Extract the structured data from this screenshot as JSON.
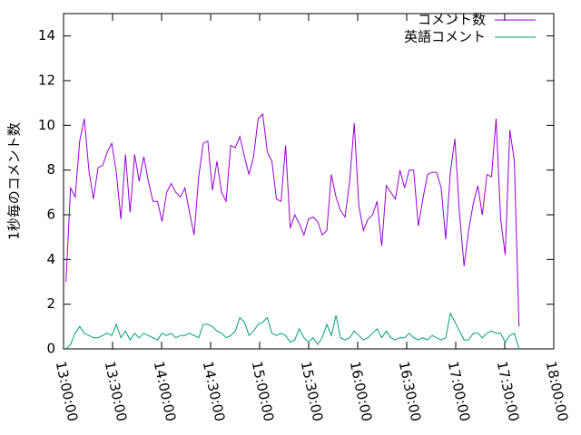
{
  "chart_data": {
    "type": "line",
    "ylabel": "1秒毎のコメント数",
    "x": [
      "13:01:30",
      "13:04:18",
      "13:07:06",
      "13:09:54",
      "13:12:42",
      "13:15:30",
      "13:18:18",
      "13:21:06",
      "13:23:54",
      "13:26:42",
      "13:29:30",
      "13:32:18",
      "13:35:06",
      "13:37:54",
      "13:40:42",
      "13:43:30",
      "13:46:18",
      "13:49:06",
      "13:51:54",
      "13:54:42",
      "13:57:30",
      "14:00:18",
      "14:03:06",
      "14:05:54",
      "14:08:42",
      "14:11:30",
      "14:14:18",
      "14:17:06",
      "14:19:54",
      "14:22:42",
      "14:25:30",
      "14:28:18",
      "14:31:06",
      "14:33:54",
      "14:36:42",
      "14:39:30",
      "14:42:18",
      "14:45:06",
      "14:47:54",
      "14:50:42",
      "14:53:30",
      "14:56:18",
      "14:59:06",
      "15:01:54",
      "15:04:42",
      "15:07:30",
      "15:10:18",
      "15:13:06",
      "15:15:54",
      "15:18:42",
      "15:21:30",
      "15:24:18",
      "15:27:06",
      "15:29:54",
      "15:32:42",
      "15:35:30",
      "15:38:18",
      "15:41:06",
      "15:43:54",
      "15:46:42",
      "15:49:30",
      "15:52:18",
      "15:55:06",
      "15:57:54",
      "16:00:42",
      "16:03:30",
      "16:06:18",
      "16:09:06",
      "16:11:54",
      "16:14:42",
      "16:17:30",
      "16:20:18",
      "16:23:06",
      "16:25:54",
      "16:28:42",
      "16:31:30",
      "16:34:18",
      "16:37:06",
      "16:39:54",
      "16:42:42",
      "16:45:30",
      "16:48:18",
      "16:51:06",
      "16:53:54",
      "16:56:42",
      "16:59:30",
      "17:02:18",
      "17:05:06",
      "17:07:54",
      "17:10:42",
      "17:13:30",
      "17:16:18",
      "17:19:06",
      "17:21:54",
      "17:24:42",
      "17:27:30",
      "17:30:18",
      "17:33:06",
      "17:35:54",
      "17:38:42"
    ],
    "series": [
      {
        "name": "コメント数",
        "color": "#9400d3",
        "values": [
          3.0,
          7.2,
          6.8,
          9.3,
          10.3,
          8.0,
          6.7,
          8.1,
          8.2,
          8.8,
          9.2,
          7.9,
          5.8,
          8.7,
          6.1,
          8.7,
          7.5,
          8.6,
          7.5,
          6.6,
          6.6,
          5.7,
          7.0,
          7.4,
          7.0,
          6.8,
          7.2,
          6.1,
          5.1,
          7.7,
          9.2,
          9.3,
          7.1,
          8.4,
          7.0,
          6.6,
          9.1,
          9.0,
          9.5,
          8.6,
          7.8,
          8.6,
          10.3,
          10.5,
          8.8,
          8.4,
          6.7,
          6.6,
          9.1,
          5.4,
          6.0,
          5.6,
          5.1,
          5.8,
          5.9,
          5.7,
          5.1,
          5.3,
          7.8,
          6.8,
          6.2,
          5.9,
          7.5,
          10.1,
          6.4,
          5.3,
          5.8,
          6.0,
          6.6,
          4.6,
          7.3,
          7.0,
          6.7,
          8.0,
          7.2,
          8.0,
          8.0,
          5.5,
          6.7,
          7.8,
          7.9,
          7.9,
          7.2,
          4.9,
          7.9,
          9.4,
          6.1,
          3.7,
          5.3,
          6.5,
          7.3,
          6.0,
          7.8,
          7.7,
          10.3,
          5.8,
          4.2,
          9.8,
          8.4,
          1.0
        ]
      },
      {
        "name": "英語コメント",
        "color": "#009e73",
        "values": [
          0.0,
          0.2,
          0.7,
          1.0,
          0.7,
          0.6,
          0.5,
          0.5,
          0.6,
          0.7,
          0.6,
          1.1,
          0.5,
          0.8,
          0.4,
          0.7,
          0.5,
          0.7,
          0.6,
          0.5,
          0.4,
          0.7,
          0.6,
          0.7,
          0.5,
          0.6,
          0.6,
          0.7,
          0.6,
          0.5,
          1.1,
          1.1,
          1.0,
          0.8,
          0.7,
          0.5,
          0.6,
          0.8,
          1.4,
          1.2,
          0.6,
          0.8,
          1.1,
          1.2,
          1.4,
          0.7,
          0.6,
          0.7,
          0.6,
          0.3,
          0.4,
          0.9,
          0.5,
          0.3,
          0.5,
          0.2,
          0.5,
          1.1,
          0.6,
          1.5,
          0.5,
          0.4,
          0.5,
          0.8,
          0.6,
          0.4,
          0.5,
          0.7,
          0.9,
          0.5,
          0.8,
          0.5,
          0.4,
          0.5,
          0.5,
          0.7,
          0.5,
          0.4,
          0.5,
          0.4,
          0.6,
          0.5,
          0.4,
          0.5,
          1.6,
          1.2,
          0.8,
          0.4,
          0.4,
          0.7,
          0.7,
          0.5,
          0.7,
          0.8,
          0.7,
          0.7,
          0.3,
          0.6,
          0.7,
          0.0
        ]
      }
    ],
    "xlim": [
      "13:00:00",
      "18:00:00"
    ],
    "xticks": [
      "13:00:00",
      "13:30:00",
      "14:00:00",
      "14:30:00",
      "15:00:00",
      "15:30:00",
      "16:00:00",
      "16:30:00",
      "17:00:00",
      "17:30:00",
      "18:00:00"
    ],
    "ylim": [
      0,
      15
    ],
    "yticks": [
      0,
      2,
      4,
      6,
      8,
      10,
      12,
      14
    ],
    "legend": "top-right"
  }
}
